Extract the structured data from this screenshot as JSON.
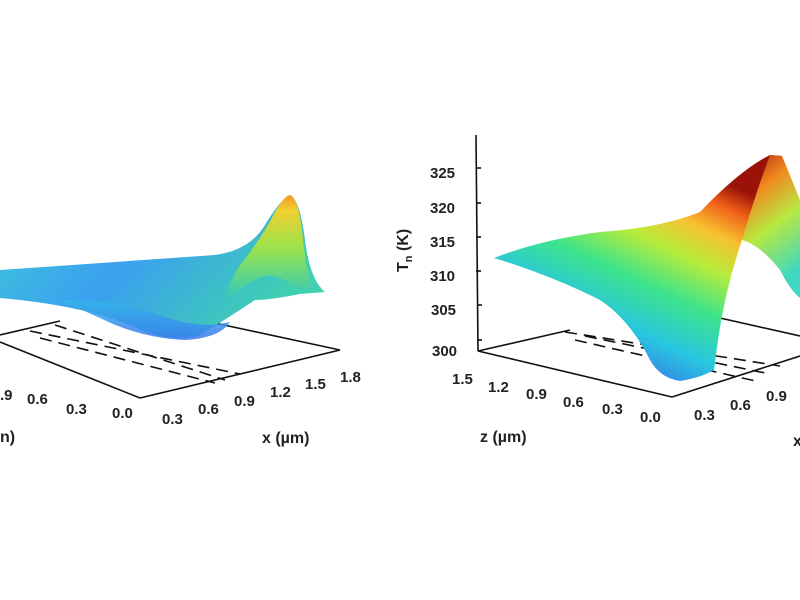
{
  "chart_data": [
    {
      "type": "surface",
      "colormap": "turbo",
      "xlabel": "x (µm)",
      "zlabel_visible_fragment": "n)",
      "x_ticks": [
        "0.0",
        "0.3",
        "0.6",
        "0.9",
        "1.2",
        "1.5",
        "1.8"
      ],
      "z_ticks": [
        ".9",
        "0.6",
        "0.3"
      ],
      "x_range": [
        0.0,
        1.8
      ],
      "grid": false
    },
    {
      "type": "surface",
      "colormap": "turbo",
      "ylabel_main": "T",
      "ylabel_sub": "n",
      "ylabel_unit": " (K)",
      "zlabel": "z (µm)",
      "xlabel_visible_fragment": "x",
      "y_ticks": [
        "325",
        "320",
        "315",
        "310",
        "305",
        "300"
      ],
      "y_range": [
        300,
        327
      ],
      "z_ticks": [
        "1.5",
        "1.2",
        "0.9",
        "0.6",
        "0.3",
        "0.0"
      ],
      "z_range": [
        0.0,
        1.5
      ],
      "x_ticks": [
        "0.3",
        "0.6",
        "0.9"
      ],
      "grid": false
    }
  ]
}
